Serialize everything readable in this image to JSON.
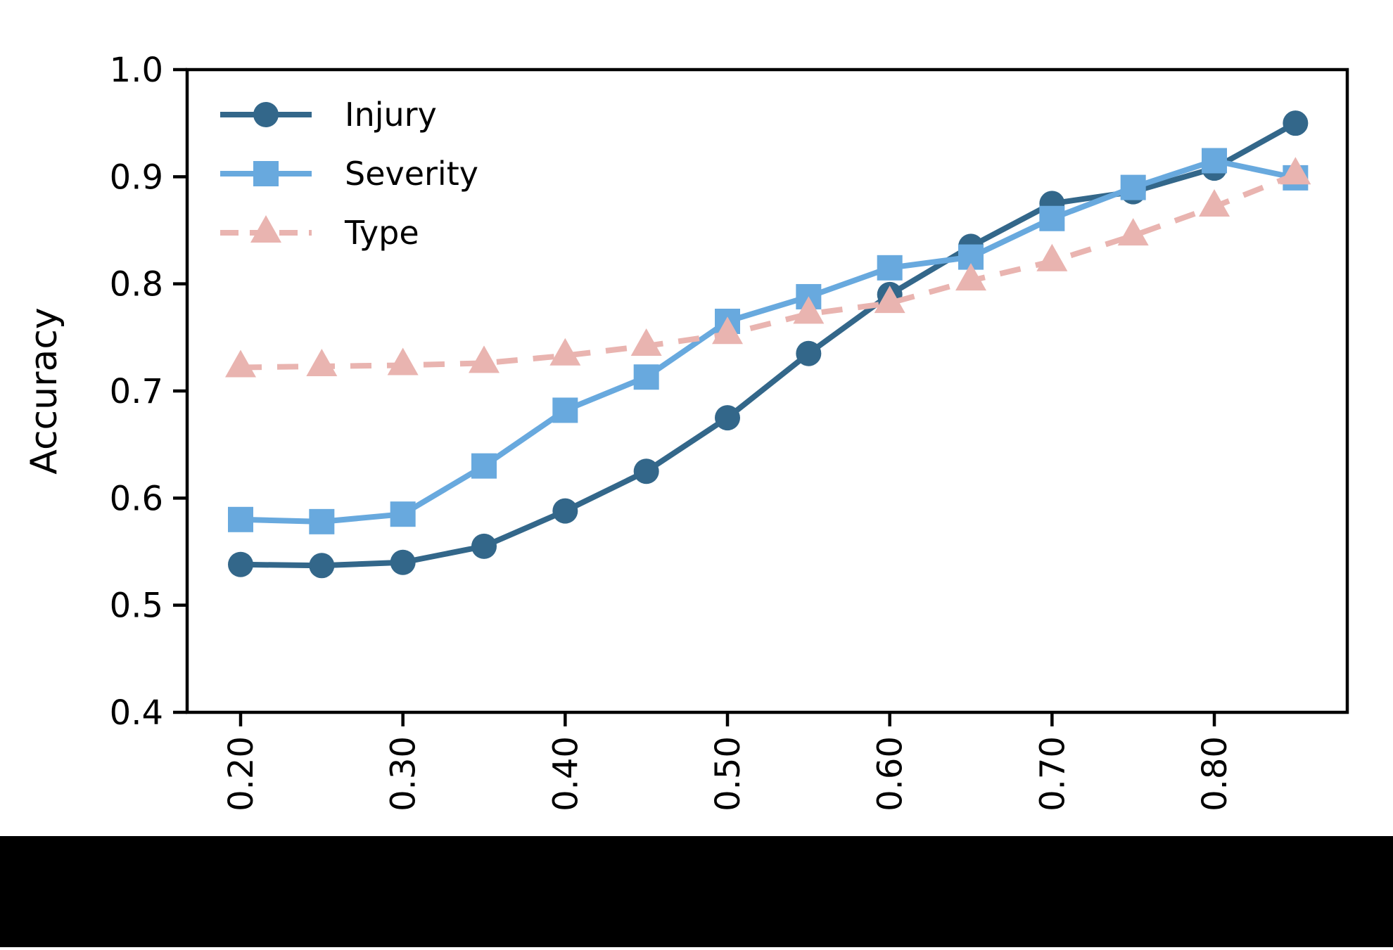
{
  "figure": {
    "background": "#ffffff",
    "bottom_bar_color": "#000000"
  },
  "chart_data": {
    "type": "line",
    "title": "",
    "xlabel": "",
    "ylabel": "Accuracy",
    "grid": false,
    "legend_position": "upper left",
    "xlim": [
      0.168,
      0.882
    ],
    "ylim": [
      0.4,
      1.0
    ],
    "x": [
      0.2,
      0.25,
      0.3,
      0.35,
      0.4,
      0.45,
      0.5,
      0.55,
      0.6,
      0.65,
      0.7,
      0.75,
      0.8,
      0.85
    ],
    "x_ticks": {
      "values": [
        0.2,
        0.3,
        0.4,
        0.5,
        0.6,
        0.7,
        0.8
      ],
      "labels": [
        "0.20",
        "0.30",
        "0.40",
        "0.50",
        "0.60",
        "0.70",
        "0.80"
      ],
      "rotation": 90
    },
    "y_ticks": {
      "values": [
        0.4,
        0.5,
        0.6,
        0.7,
        0.8,
        0.9,
        1.0
      ],
      "labels": [
        "0.4",
        "0.5",
        "0.6",
        "0.7",
        "0.8",
        "0.9",
        "1.0"
      ]
    },
    "series": [
      {
        "name": "Injury",
        "color": "#33678a",
        "marker": "circle",
        "linestyle": "solid",
        "values": [
          0.538,
          0.537,
          0.54,
          0.555,
          0.588,
          0.625,
          0.675,
          0.735,
          0.79,
          0.835,
          0.875,
          0.886,
          0.908,
          0.95
        ]
      },
      {
        "name": "Severity",
        "color": "#68a9de",
        "marker": "square",
        "linestyle": "solid",
        "values": [
          0.58,
          0.578,
          0.585,
          0.63,
          0.682,
          0.713,
          0.765,
          0.788,
          0.815,
          0.825,
          0.861,
          0.89,
          0.915,
          0.899
        ]
      },
      {
        "name": "Type",
        "color": "#e9b4b0",
        "marker": "triangle",
        "linestyle": "dashed",
        "values": [
          0.722,
          0.723,
          0.724,
          0.726,
          0.733,
          0.742,
          0.753,
          0.772,
          0.782,
          0.803,
          0.821,
          0.845,
          0.872,
          0.902
        ]
      }
    ]
  }
}
